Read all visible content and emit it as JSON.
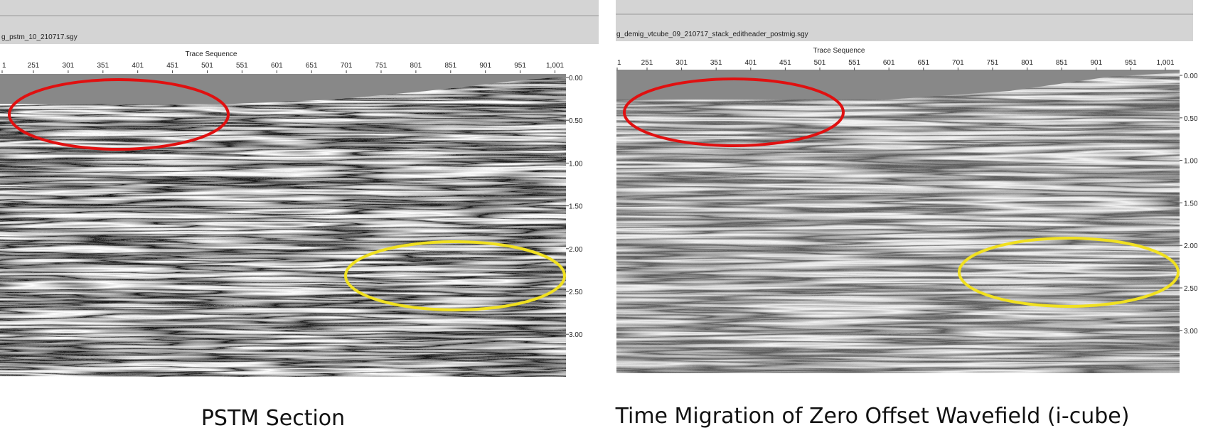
{
  "panels": [
    {
      "file": "g_pstm_10_210717.sgy",
      "axis_title": "Trace Sequence",
      "x_ticks": [
        "1",
        "251",
        "301",
        "351",
        "401",
        "451",
        "501",
        "551",
        "601",
        "651",
        "701",
        "751",
        "801",
        "851",
        "901",
        "951",
        "1,001"
      ],
      "y_ticks": [
        "0.00",
        "0.50",
        "1.00",
        "1.50",
        "2.00",
        "2.50",
        "3.00"
      ],
      "caption": "PSTM Section"
    },
    {
      "file": "g_demig_vtcube_09_210717_stack_editheader_postmig.sgy",
      "axis_title": "Trace Sequence",
      "x_ticks": [
        "1",
        "251",
        "301",
        "351",
        "401",
        "451",
        "501",
        "551",
        "601",
        "651",
        "701",
        "751",
        "801",
        "851",
        "901",
        "951",
        "1,001"
      ],
      "y_ticks": [
        "0.00",
        "0.50",
        "1.00",
        "1.50",
        "2.00",
        "2.50",
        "3.00"
      ],
      "caption": "Time Migration of Zero Offset Wavefield  (i-cube)"
    }
  ]
}
